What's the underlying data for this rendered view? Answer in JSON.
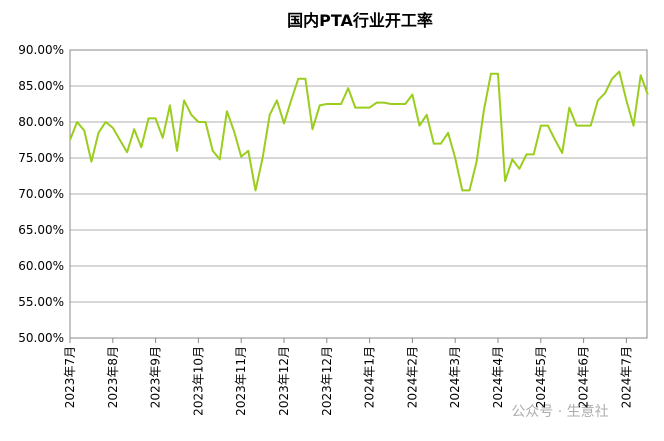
{
  "chart_data": {
    "type": "line",
    "title": "国内PTA行业开工率",
    "watermark": "公众号 · 生意社",
    "categories": [
      "2023年7月",
      null,
      null,
      null,
      null,
      null,
      "2023年8月",
      null,
      null,
      null,
      null,
      null,
      "2023年9月",
      null,
      null,
      null,
      null,
      null,
      "2023年10月",
      null,
      null,
      null,
      null,
      null,
      "2023年11月",
      null,
      null,
      null,
      null,
      null,
      "2023年12月",
      null,
      null,
      null,
      null,
      null,
      "2023年12月",
      null,
      null,
      null,
      null,
      null,
      "2024年1月",
      null,
      null,
      null,
      null,
      null,
      "2024年2月",
      null,
      null,
      null,
      null,
      null,
      "2024年3月",
      null,
      null,
      null,
      null,
      null,
      "2024年4月",
      null,
      null,
      null,
      null,
      null,
      "2024年5月",
      null,
      null,
      null,
      null,
      null,
      "2024年6月",
      null,
      null,
      null,
      null,
      null,
      "2024年7月",
      null,
      null,
      null
    ],
    "series": [
      {
        "name": "国内PTA行业开工率",
        "color": "#9acd1e",
        "values": [
          77.5,
          80,
          78.8,
          74.5,
          78.5,
          80,
          79.2,
          77.5,
          75.8,
          79,
          76.5,
          80.5,
          80.5,
          77.8,
          82.3,
          76,
          83,
          81,
          80,
          80,
          76,
          74.8,
          81.5,
          78.7,
          75.2,
          76,
          70.5,
          75,
          81,
          83,
          79.8,
          83,
          86,
          86,
          79,
          82.3,
          82.5,
          82.5,
          82.5,
          84.7,
          82,
          82,
          82,
          82.7,
          82.7,
          82.5,
          82.5,
          82.5,
          83.8,
          79.5,
          81,
          77,
          77,
          78.5,
          75,
          70.5,
          70.5,
          74.5,
          81.5,
          86.7,
          86.7,
          71.8,
          74.8,
          73.5,
          75.5,
          75.5,
          79.5,
          79.5,
          77.5,
          75.7,
          82,
          79.5,
          79.5,
          79.5,
          83,
          84,
          86,
          87,
          83,
          79.5,
          86.5,
          83.8
        ]
      }
    ],
    "ylim": [
      50,
      90
    ],
    "yticks": [
      {
        "value": 50,
        "label": "50.00%"
      },
      {
        "value": 55,
        "label": "55.00%"
      },
      {
        "value": 60,
        "label": "60.00%"
      },
      {
        "value": 65,
        "label": "65.00%"
      },
      {
        "value": 70,
        "label": "70.00%"
      },
      {
        "value": 75,
        "label": "75.00%"
      },
      {
        "value": 80,
        "label": "80.00%"
      },
      {
        "value": 85,
        "label": "85.00%"
      },
      {
        "value": 90,
        "label": "90.00%"
      }
    ],
    "grid": true
  }
}
